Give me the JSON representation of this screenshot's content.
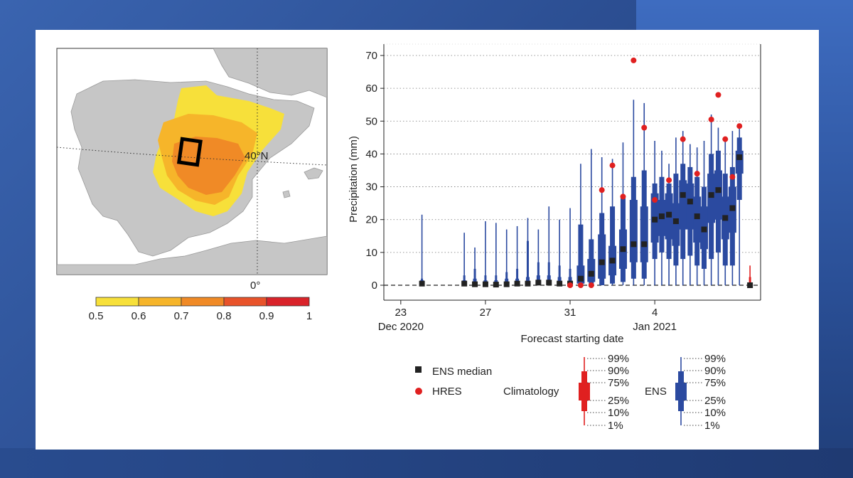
{
  "map": {
    "lat_label": "40°N",
    "lon_label": "0°",
    "colorbar_ticks": [
      "0.5",
      "0.6",
      "0.7",
      "0.8",
      "0.9",
      "1"
    ],
    "colorbar_colors": [
      "#f7e03a",
      "#f6b52a",
      "#f08a26",
      "#e8532a",
      "#d9232a"
    ]
  },
  "chart_data": {
    "type": "box",
    "xlabel": "Forecast starting date",
    "ylabel": "Precipitation (mm)",
    "ylim": [
      0,
      72
    ],
    "yticks": [
      "0",
      "10",
      "20",
      "30",
      "40",
      "50",
      "60",
      "70"
    ],
    "xticks": [
      {
        "day": 23,
        "label": "23",
        "sublabel": "Dec 2020"
      },
      {
        "day": 27,
        "label": "27",
        "sublabel": ""
      },
      {
        "day": 31,
        "label": "31",
        "sublabel": ""
      },
      {
        "day": 35,
        "label": "4",
        "sublabel": "Jan 2021"
      }
    ],
    "grid": true,
    "ens_color": "#2b4aa0",
    "clim_color": "#e02020",
    "hres_color": "#e02020",
    "ens": [
      {
        "day": 24.0,
        "p1": 0,
        "p10": 0,
        "p25": 0,
        "med": 0.5,
        "p75": 1.5,
        "p90": 2,
        "p99": 21.5
      },
      {
        "day": 26.0,
        "p1": 0,
        "p10": 0,
        "p25": 0,
        "med": 0.5,
        "p75": 1.5,
        "p90": 3,
        "p99": 16
      },
      {
        "day": 26.5,
        "p1": 0,
        "p10": 0,
        "p25": 0,
        "med": 0.3,
        "p75": 2,
        "p90": 5,
        "p99": 11.5
      },
      {
        "day": 27.0,
        "p1": 0,
        "p10": 0,
        "p25": 0,
        "med": 0.3,
        "p75": 1.5,
        "p90": 3,
        "p99": 19.5
      },
      {
        "day": 27.5,
        "p1": 0,
        "p10": 0,
        "p25": 0,
        "med": 0.2,
        "p75": 1.5,
        "p90": 3,
        "p99": 19
      },
      {
        "day": 28.0,
        "p1": 0,
        "p10": 0,
        "p25": 0,
        "med": 0.3,
        "p75": 2,
        "p90": 4,
        "p99": 17
      },
      {
        "day": 28.5,
        "p1": 0,
        "p10": 0,
        "p25": 0,
        "med": 0.5,
        "p75": 2,
        "p90": 5,
        "p99": 18
      },
      {
        "day": 29.0,
        "p1": 0,
        "p10": 0,
        "p25": 0,
        "med": 0.5,
        "p75": 2.5,
        "p90": 13.5,
        "p99": 20.5
      },
      {
        "day": 29.5,
        "p1": 0,
        "p10": 0,
        "p25": 0,
        "med": 0.8,
        "p75": 3,
        "p90": 7,
        "p99": 17
      },
      {
        "day": 30.0,
        "p1": 0,
        "p10": 0,
        "p25": 0,
        "med": 0.8,
        "p75": 3,
        "p90": 7,
        "p99": 24
      },
      {
        "day": 30.5,
        "p1": 0,
        "p10": 0,
        "p25": 0,
        "med": 0.5,
        "p75": 2.5,
        "p90": 6,
        "p99": 20
      },
      {
        "day": 31.0,
        "p1": 0,
        "p10": 0,
        "p25": 0,
        "med": 0.5,
        "p75": 2.5,
        "p90": 5,
        "p99": 23.5
      },
      {
        "day": 31.5,
        "p1": 0,
        "p10": 0,
        "p25": 0.5,
        "med": 2,
        "p75": 6,
        "p90": 18.5,
        "p99": 37
      },
      {
        "day": 32.0,
        "p1": 0,
        "p10": 0,
        "p25": 1,
        "med": 3.5,
        "p75": 8,
        "p90": 14,
        "p99": 41.5
      },
      {
        "day": 32.5,
        "p1": 0,
        "p10": 0,
        "p25": 2,
        "med": 7,
        "p75": 15.5,
        "p90": 22,
        "p99": 39
      },
      {
        "day": 33.0,
        "p1": 0,
        "p10": 0.5,
        "p25": 3,
        "med": 7.5,
        "p75": 12,
        "p90": 24,
        "p99": 38.5
      },
      {
        "day": 33.5,
        "p1": 0,
        "p10": 1,
        "p25": 5,
        "med": 11,
        "p75": 17,
        "p90": 27,
        "p99": 43.5
      },
      {
        "day": 34.0,
        "p1": 0,
        "p10": 2,
        "p25": 7,
        "med": 12.5,
        "p75": 26,
        "p90": 33,
        "p99": 56.5
      },
      {
        "day": 34.5,
        "p1": 0,
        "p10": 2,
        "p25": 7,
        "med": 12.5,
        "p75": 24,
        "p90": 35,
        "p99": 55.5
      },
      {
        "day": 35.0,
        "p1": 0,
        "p10": 8,
        "p25": 13,
        "med": 20,
        "p75": 28,
        "p90": 31,
        "p99": 44
      },
      {
        "day": 35.33,
        "p1": 0,
        "p10": 10,
        "p25": 15,
        "med": 21,
        "p75": 26,
        "p90": 33,
        "p99": 41
      },
      {
        "day": 35.67,
        "p1": 0,
        "p10": 8,
        "p25": 14,
        "med": 21.5,
        "p75": 28,
        "p90": 31,
        "p99": 37
      },
      {
        "day": 36.0,
        "p1": 0,
        "p10": 6,
        "p25": 12,
        "med": 19.5,
        "p75": 25,
        "p90": 34,
        "p99": 45
      },
      {
        "day": 36.33,
        "p1": 0,
        "p10": 8,
        "p25": 17,
        "med": 27.5,
        "p75": 32,
        "p90": 37,
        "p99": 47
      },
      {
        "day": 36.67,
        "p1": 0,
        "p10": 9,
        "p25": 17,
        "med": 25.5,
        "p75": 31,
        "p90": 36,
        "p99": 43
      },
      {
        "day": 37.0,
        "p1": 0,
        "p10": 6,
        "p25": 13,
        "med": 21,
        "p75": 27,
        "p90": 33,
        "p99": 42
      },
      {
        "day": 37.33,
        "p1": 0,
        "p10": 5,
        "p25": 11,
        "med": 17,
        "p75": 24,
        "p90": 30,
        "p99": 44
      },
      {
        "day": 37.67,
        "p1": 0,
        "p10": 8,
        "p25": 19,
        "med": 27.5,
        "p75": 34,
        "p90": 40,
        "p99": 52
      },
      {
        "day": 38.0,
        "p1": 0,
        "p10": 10,
        "p25": 20,
        "med": 29,
        "p75": 35,
        "p90": 41,
        "p99": 48
      },
      {
        "day": 38.33,
        "p1": 0,
        "p10": 6,
        "p25": 14,
        "med": 20.5,
        "p75": 27,
        "p90": 34,
        "p99": 45
      },
      {
        "day": 38.67,
        "p1": 0,
        "p10": 6,
        "p25": 16,
        "med": 23.5,
        "p75": 30,
        "p90": 36,
        "p99": 47
      },
      {
        "day": 39.0,
        "p1": 0,
        "p10": 26,
        "p25": 34,
        "med": 39,
        "p75": 41,
        "p90": 45,
        "p99": 48
      }
    ],
    "hres": [
      {
        "day": 31.0,
        "y": 0
      },
      {
        "day": 31.5,
        "y": 0
      },
      {
        "day": 32.0,
        "y": 0
      },
      {
        "day": 32.5,
        "y": 29
      },
      {
        "day": 33.0,
        "y": 36.5
      },
      {
        "day": 33.5,
        "y": 27
      },
      {
        "day": 34.0,
        "y": 68.5
      },
      {
        "day": 34.5,
        "y": 48
      },
      {
        "day": 35.0,
        "y": 26
      },
      {
        "day": 35.67,
        "y": 32
      },
      {
        "day": 36.33,
        "y": 44.5
      },
      {
        "day": 37.0,
        "y": 34
      },
      {
        "day": 37.67,
        "y": 50.5
      },
      {
        "day": 38.0,
        "y": 58
      },
      {
        "day": 38.33,
        "y": 44.5
      },
      {
        "day": 38.67,
        "y": 33
      },
      {
        "day": 39.0,
        "y": 48.5
      }
    ],
    "clim": {
      "day": 39.5,
      "p1": 0,
      "p10": 0,
      "p25": 0,
      "med": 0,
      "p75": 0.5,
      "p90": 2.5,
      "p99": 6
    },
    "legend": {
      "median_label": "ENS median",
      "hres_label": "HRES",
      "clim_label": "Climatology",
      "ens_label": "ENS",
      "percentiles": [
        "99%",
        "90%",
        "75%",
        "25%",
        "10%",
        "1%"
      ]
    }
  }
}
